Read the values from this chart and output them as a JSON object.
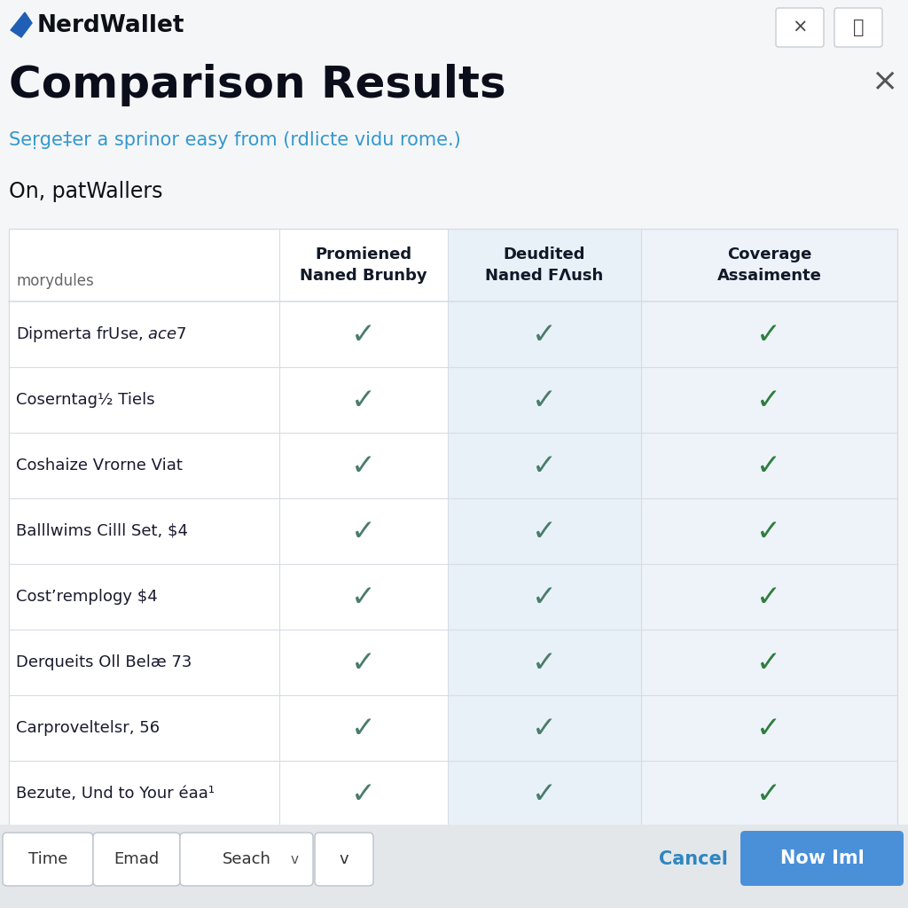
{
  "bg_color": "#f5f6f8",
  "white": "#ffffff",
  "logo_text": "NerdWallet",
  "title": "Comparison Results",
  "subtitle": "Seṛge‡er a sprinor easy from (rdlicte vidu rome.)",
  "subtitle_color": "#3399cc",
  "onpat_text": "On, patWallers",
  "table_header_row": [
    "morydules",
    "Promiened\nNaned Brunby",
    "Deudited\nNaned FΛush",
    "Coverage\nAssaimente"
  ],
  "table_rows": [
    "Dipmerta frUse, $ace $7",
    "Coserntag½ Tiels",
    "Coshaize Vrorne Viat",
    "Balllwims Cilll Set, $4",
    "Cost’remplogy $4",
    "Derqueits Oll Belæ 73",
    "Carproveltelsr, 56",
    "Bezute, Und to Your éaa¹"
  ],
  "col_bg_col1": "#ffffff",
  "col_bg_col2": "#ffffff",
  "col_bg_col3": "#e8f1f8",
  "col_bg_col4": "#edf3f8",
  "check_color_col1": "#4a7c6b",
  "check_color_col2": "#4a7c6b",
  "check_color_col3": "#2e7d3e",
  "footer_btn_labels": [
    "Time",
    "Emad",
    "Seach",
    "v"
  ],
  "cancel_text": "Cancel",
  "cancel_color": "#2e86c1",
  "action_btn_text": "Now Iml",
  "action_btn_color": "#4a90d9",
  "table_line_color": "#d8dde3",
  "header_text_color": "#111827",
  "row_text_color": "#1a1a2e",
  "nw_blue": "#1f5fb5",
  "logo_font_size": 19,
  "title_font_size": 36,
  "subtitle_font_size": 15,
  "onpat_font_size": 17
}
